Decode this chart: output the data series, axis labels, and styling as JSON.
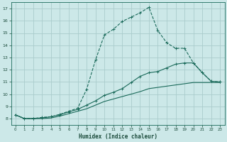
{
  "xlabel": "Humidex (Indice chaleur)",
  "bg_color": "#cce8e8",
  "grid_color": "#aacccc",
  "line_color": "#1a6a5a",
  "xlim": [
    -0.5,
    23.5
  ],
  "ylim": [
    7.5,
    17.5
  ],
  "xticks": [
    0,
    1,
    2,
    3,
    4,
    5,
    6,
    7,
    8,
    9,
    10,
    11,
    12,
    13,
    14,
    15,
    16,
    17,
    18,
    19,
    20,
    21,
    22,
    23
  ],
  "yticks": [
    8,
    9,
    10,
    11,
    12,
    13,
    14,
    15,
    16,
    17
  ],
  "line1_x": [
    0,
    1,
    2,
    3,
    4,
    5,
    6,
    7,
    8,
    9,
    10,
    11,
    12,
    13,
    14,
    15,
    16,
    17,
    18,
    19,
    20,
    21,
    22,
    23
  ],
  "line1_y": [
    8.3,
    8.0,
    8.0,
    8.1,
    8.15,
    8.35,
    8.6,
    8.85,
    10.4,
    12.8,
    14.85,
    15.3,
    15.95,
    16.3,
    16.65,
    17.1,
    15.2,
    14.2,
    13.75,
    13.75,
    12.55,
    11.75,
    11.05,
    11.0
  ],
  "line2_x": [
    0,
    1,
    2,
    3,
    4,
    5,
    6,
    7,
    8,
    9,
    10,
    11,
    12,
    13,
    14,
    15,
    16,
    17,
    18,
    19,
    20,
    21,
    22,
    23
  ],
  "line2_y": [
    8.3,
    8.0,
    8.0,
    8.05,
    8.15,
    8.3,
    8.55,
    8.75,
    9.1,
    9.45,
    9.9,
    10.15,
    10.45,
    10.95,
    11.45,
    11.75,
    11.85,
    12.15,
    12.45,
    12.55,
    12.55,
    11.75,
    11.05,
    11.0
  ],
  "line3_x": [
    0,
    1,
    2,
    3,
    4,
    5,
    6,
    7,
    8,
    9,
    10,
    11,
    12,
    13,
    14,
    15,
    16,
    17,
    18,
    19,
    20,
    21,
    22,
    23
  ],
  "line3_y": [
    8.3,
    8.0,
    8.0,
    8.0,
    8.05,
    8.2,
    8.4,
    8.6,
    8.8,
    9.1,
    9.4,
    9.6,
    9.8,
    10.0,
    10.2,
    10.45,
    10.55,
    10.65,
    10.75,
    10.85,
    10.95,
    10.95,
    10.95,
    10.95
  ]
}
